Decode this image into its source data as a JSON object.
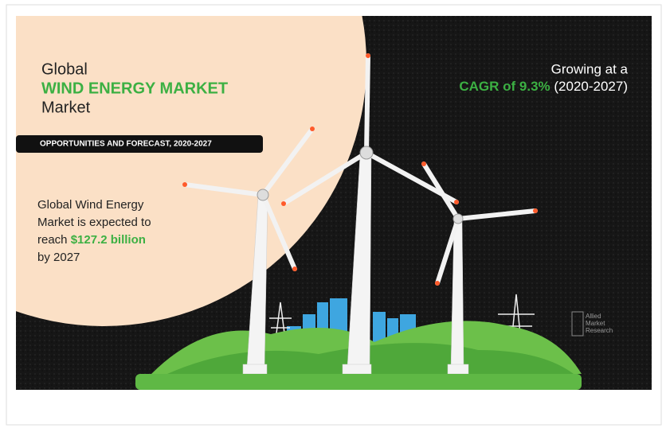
{
  "header": {
    "line1": "Global",
    "line2": "WIND ENERGY  MARKET",
    "line3": "Market"
  },
  "banner": "OPPORTUNITIES AND FORECAST, 2020-2027",
  "statement": {
    "line1": "Global Wind Energy",
    "line2": "Market is expected to",
    "line3_prefix": "reach",
    "line3_highlight": "$127.2 billion",
    "line4": "by 2027"
  },
  "growth": {
    "line1": "Growing at a",
    "highlight": "CAGR of 9.3%",
    "period": "(2020-2027)"
  },
  "logo": {
    "line1": "Allied",
    "line2": "Market",
    "line3": "Research"
  }
}
